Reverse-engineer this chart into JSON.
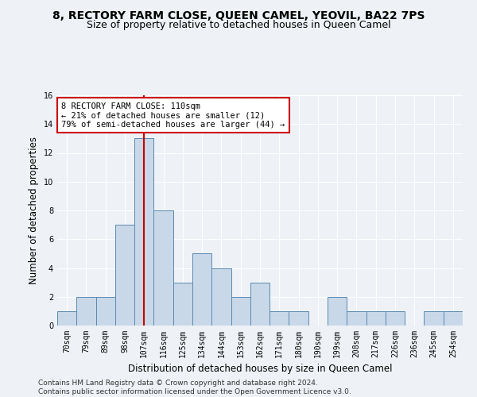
{
  "title": "8, RECTORY FARM CLOSE, QUEEN CAMEL, YEOVIL, BA22 7PS",
  "subtitle": "Size of property relative to detached houses in Queen Camel",
  "xlabel": "Distribution of detached houses by size in Queen Camel",
  "ylabel": "Number of detached properties",
  "bin_labels": [
    "70sqm",
    "79sqm",
    "89sqm",
    "98sqm",
    "107sqm",
    "116sqm",
    "125sqm",
    "134sqm",
    "144sqm",
    "153sqm",
    "162sqm",
    "171sqm",
    "180sqm",
    "190sqm",
    "199sqm",
    "208sqm",
    "217sqm",
    "226sqm",
    "236sqm",
    "245sqm",
    "254sqm"
  ],
  "bar_heights": [
    1,
    2,
    2,
    7,
    13,
    8,
    3,
    5,
    4,
    2,
    3,
    1,
    1,
    0,
    2,
    1,
    1,
    1,
    0,
    1,
    1
  ],
  "bar_color": "#c8d8e8",
  "bar_edge_color": "#5a8ab0",
  "vline_color": "#cc0000",
  "vline_x_index": 4,
  "annotation_text": "8 RECTORY FARM CLOSE: 110sqm\n← 21% of detached houses are smaller (12)\n79% of semi-detached houses are larger (44) →",
  "annotation_box_color": "white",
  "annotation_box_edge": "#cc0000",
  "ylim": [
    0,
    16
  ],
  "yticks": [
    0,
    2,
    4,
    6,
    8,
    10,
    12,
    14,
    16
  ],
  "footer": "Contains HM Land Registry data © Crown copyright and database right 2024.\nContains public sector information licensed under the Open Government Licence v3.0.",
  "bg_color": "#eef2f6",
  "grid_color": "#ffffff",
  "title_fontsize": 10,
  "subtitle_fontsize": 9,
  "label_fontsize": 8.5,
  "tick_fontsize": 7,
  "footer_fontsize": 6.5,
  "annot_fontsize": 7.5
}
